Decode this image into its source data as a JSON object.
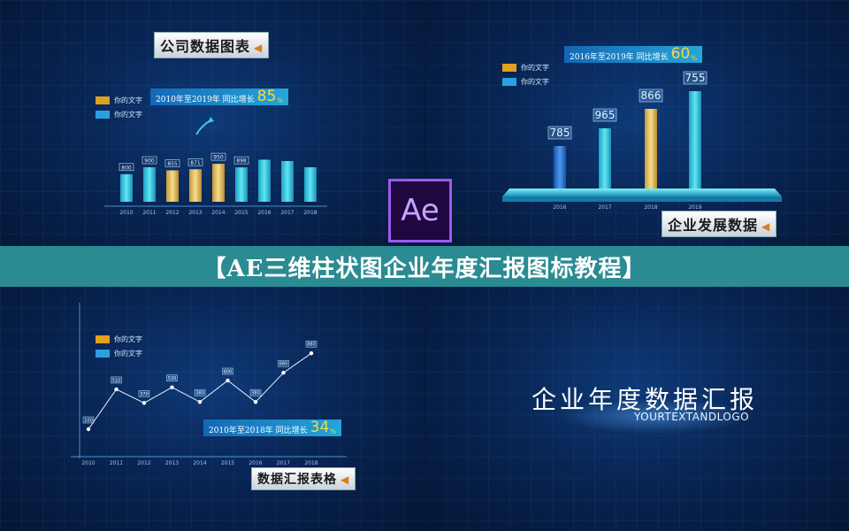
{
  "banner": {
    "title": "【AE三维柱状图企业年度汇报图标教程】"
  },
  "logo": {
    "text": "Ae",
    "color": "#9a5bf0"
  },
  "legend": {
    "item1": "你的文字",
    "item2": "你的文字"
  },
  "colors": {
    "gold": "#e8c45a",
    "cyan": "#36d3e0",
    "blue": "#2a6fd0",
    "banner": "#2b8b92"
  },
  "panel1": {
    "tag": "公司数据图表",
    "growth_text": "2010年至2019年 同比增长",
    "growth_pct": "85",
    "growth_unit": "%",
    "chart_data": {
      "type": "bar",
      "categories": [
        "2010",
        "2011",
        "2012",
        "2013",
        "2014",
        "2015",
        "2016",
        "2017",
        "2018"
      ],
      "values": [
        800,
        900,
        855,
        871,
        950,
        898,
        1010,
        990,
        900
      ],
      "labels": [
        "800",
        "900",
        "855",
        "871",
        "950",
        "898",
        "",
        "",
        ""
      ]
    }
  },
  "panel2": {
    "tag": "企业发展数据",
    "growth_text": "2016年至2019年 同比增长",
    "growth_pct": "60",
    "growth_unit": "%",
    "chart_data": {
      "type": "bar",
      "categories": [
        "2016",
        "2017",
        "2018",
        "2019"
      ],
      "values": [
        785,
        965,
        866,
        755
      ],
      "labels": [
        "785",
        "965",
        "866",
        "755"
      ]
    }
  },
  "panel3": {
    "tag": "数据汇报表格",
    "growth_text": "2010年至2018年 同比增长",
    "growth_pct": "34",
    "growth_unit": "%",
    "chart_data": {
      "type": "line",
      "categories": [
        "2010",
        "2011",
        "2012",
        "2013",
        "2014",
        "2015",
        "2016",
        "2017",
        "2018"
      ],
      "values": [
        100,
        510,
        370,
        530,
        380,
        600,
        380,
        680,
        880
      ],
      "labels": [
        "100",
        "510",
        "370",
        "530",
        "380",
        "600",
        "380",
        "680",
        "880"
      ]
    }
  },
  "panel4": {
    "title": "企业年度数据汇报",
    "subtitle": "YOURTEXTANDLOGO"
  }
}
